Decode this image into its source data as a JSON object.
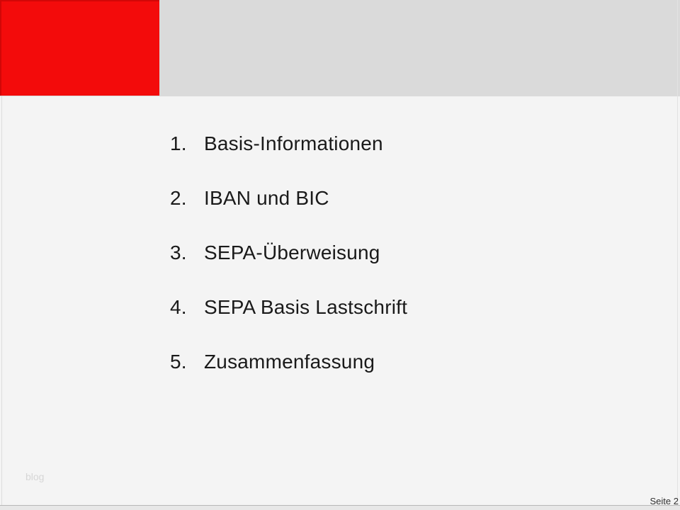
{
  "agenda": {
    "items": [
      {
        "number": "1.",
        "label": "Basis-Informationen"
      },
      {
        "number": "2.",
        "label": "IBAN und BIC"
      },
      {
        "number": "3.",
        "label": "SEPA-Überweisung"
      },
      {
        "number": "4.",
        "label": "SEPA Basis Lastschrift"
      },
      {
        "number": "5.",
        "label": "Zusammenfassung"
      }
    ]
  },
  "footer": {
    "watermark": "blog",
    "page_label": "Seite 2"
  },
  "colors": {
    "accent_red": "#f30b0b",
    "header_gray": "#dadada",
    "body_gray": "#f4f4f4",
    "text": "#1a1a1a",
    "watermark_gray": "#d6d6d6"
  }
}
